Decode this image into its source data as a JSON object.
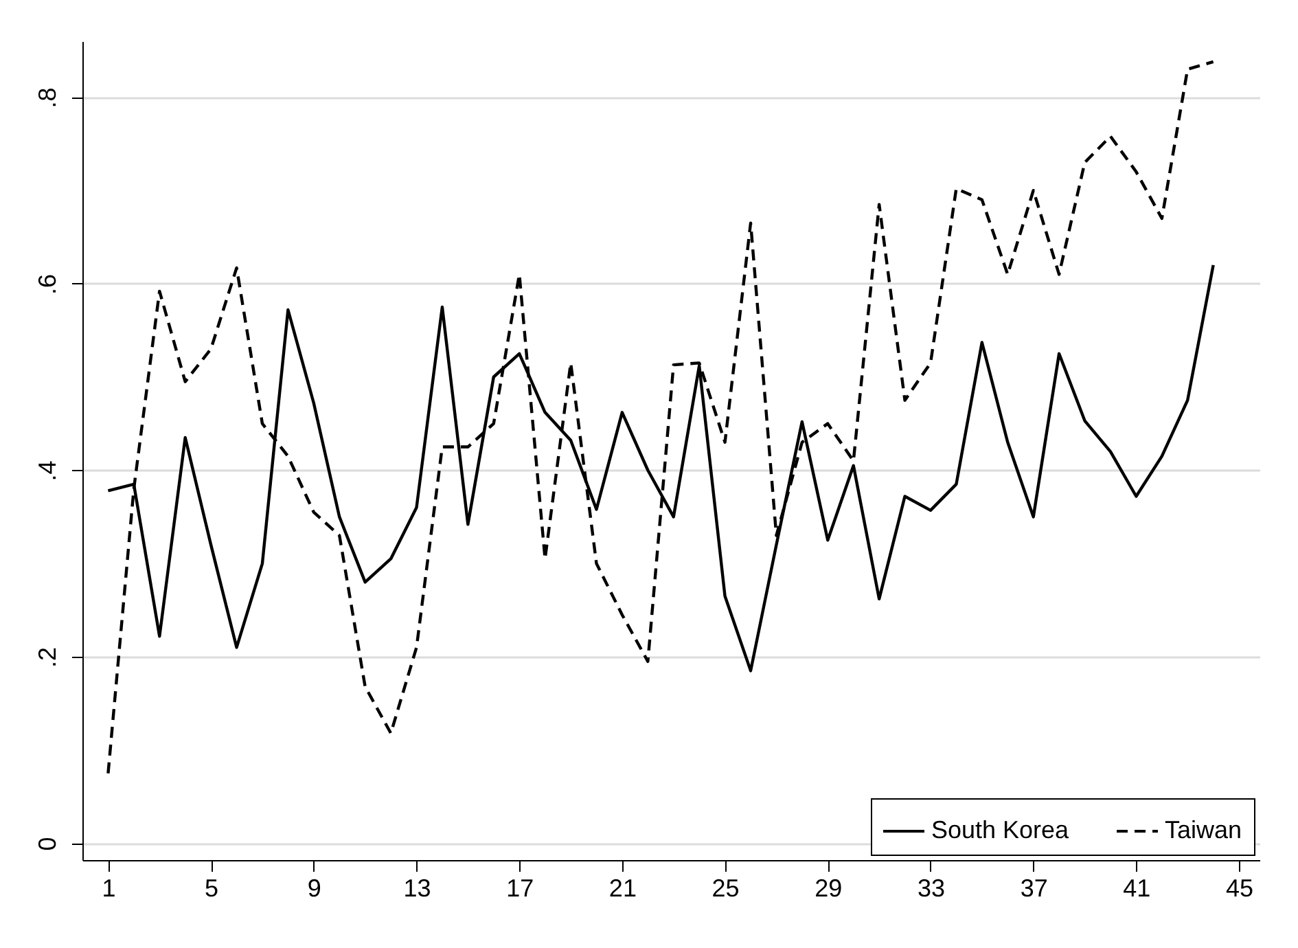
{
  "chart_data": {
    "type": "line",
    "x": [
      1,
      2,
      3,
      4,
      5,
      6,
      7,
      8,
      9,
      10,
      11,
      12,
      13,
      14,
      15,
      16,
      17,
      18,
      19,
      20,
      21,
      22,
      23,
      24,
      25,
      26,
      27,
      28,
      29,
      30,
      31,
      32,
      33,
      34,
      35,
      36,
      37,
      38,
      39,
      40,
      41,
      42,
      43,
      44
    ],
    "series": [
      {
        "name": "South Korea",
        "color": "#000000",
        "line_style": "solid",
        "values": [
          0.378,
          0.385,
          0.222,
          0.435,
          0.32,
          0.21,
          0.3,
          0.572,
          0.472,
          0.35,
          0.28,
          0.305,
          0.36,
          0.575,
          0.342,
          0.5,
          0.525,
          0.462,
          0.432,
          0.358,
          0.462,
          0.4,
          0.35,
          0.512,
          0.265,
          0.185,
          0.32,
          0.452,
          0.325,
          0.405,
          0.262,
          0.372,
          0.357,
          0.385,
          0.537,
          0.43,
          0.35,
          0.525,
          0.453,
          0.42,
          0.372,
          0.415,
          0.475,
          0.62
        ]
      },
      {
        "name": "Taiwan",
        "color": "#000000",
        "line_style": "dashed",
        "values": [
          0.075,
          0.38,
          0.592,
          0.495,
          0.53,
          0.617,
          0.45,
          0.415,
          0.355,
          0.33,
          0.168,
          0.118,
          0.21,
          0.425,
          0.425,
          0.45,
          0.61,
          0.305,
          0.515,
          0.3,
          0.245,
          0.195,
          0.513,
          0.515,
          0.43,
          0.665,
          0.33,
          0.43,
          0.45,
          0.41,
          0.685,
          0.475,
          0.515,
          0.702,
          0.69,
          0.61,
          0.7,
          0.61,
          0.73,
          0.758,
          0.72,
          0.67,
          0.83,
          0.838
        ]
      }
    ],
    "xlim": [
      0,
      45.8
    ],
    "xticks": [
      1,
      5,
      9,
      13,
      17,
      21,
      25,
      29,
      33,
      37,
      41,
      45
    ],
    "ylim": [
      -0.018,
      0.86
    ],
    "yticks": [
      0,
      {
        "value": 0.2,
        "label": ".2"
      },
      {
        "value": 0.4,
        "label": ".4"
      },
      {
        "value": 0.6,
        "label": ".6"
      },
      {
        "value": 0.8,
        "label": ".8"
      }
    ],
    "grid": "y",
    "legend": "bottom right",
    "marker": "none"
  }
}
